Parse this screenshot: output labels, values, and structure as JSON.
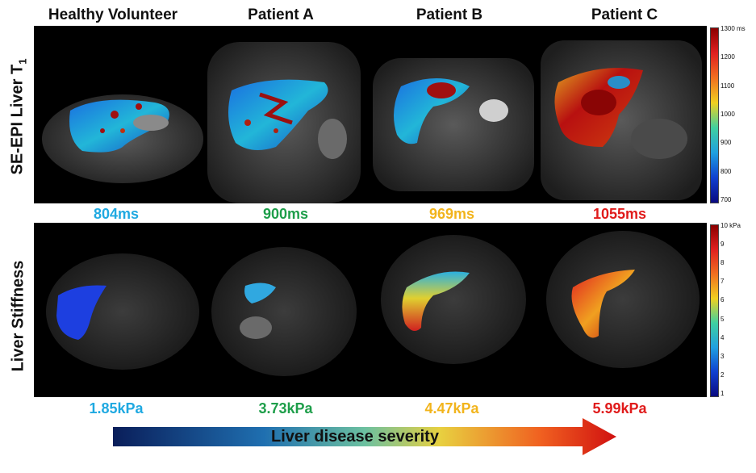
{
  "columns": [
    "Healthy Volunteer",
    "Patient A",
    "Patient B",
    "Patient C"
  ],
  "rows": {
    "t1_label": "SE-EPI Liver T",
    "t1_sub": "1",
    "stiffness_label": "Liver Stiffness"
  },
  "t1_values": [
    {
      "text": "804ms",
      "color": "#1fa9e1"
    },
    {
      "text": "900ms",
      "color": "#1e9e4a"
    },
    {
      "text": "969ms",
      "color": "#f2b41c"
    },
    {
      "text": "1055ms",
      "color": "#e01b1b"
    }
  ],
  "stiffness_values": [
    {
      "text": "1.85kPa",
      "color": "#1fa9e1"
    },
    {
      "text": "3.73kPa",
      "color": "#1e9e4a"
    },
    {
      "text": "4.47kPa",
      "color": "#f2b41c"
    },
    {
      "text": "5.99kPa",
      "color": "#e01b1b"
    }
  ],
  "t1_colorbar": [
    "1300 ms",
    "1200",
    "1100",
    "1000",
    "900",
    "800",
    "700"
  ],
  "stiffness_colorbar": [
    "10 kPa",
    "9",
    "8",
    "7",
    "6",
    "5",
    "4",
    "3",
    "2",
    "1"
  ],
  "arrow_label": "Liver disease severity"
}
